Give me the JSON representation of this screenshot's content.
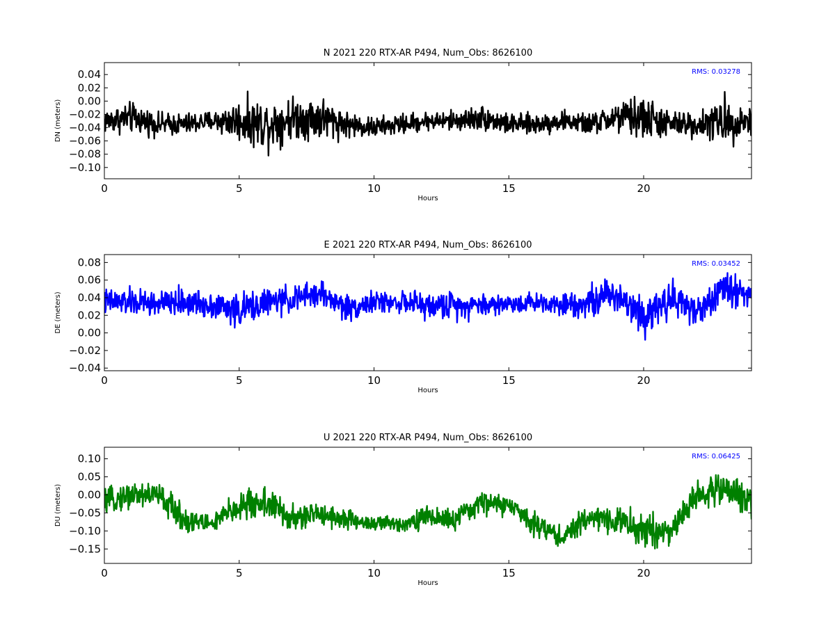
{
  "chart_data": [
    {
      "type": "line",
      "title": "N 2021 220 RTX-AR  P494, Num_Obs: 8626100",
      "xlabel": "Hours",
      "ylabel": "DN (meters)",
      "xlim": [
        0,
        24
      ],
      "ylim": [
        -0.117,
        0.058
      ],
      "xticks": [
        0,
        5,
        10,
        15,
        20
      ],
      "xtick_labels": [
        "0",
        "5",
        "10",
        "15",
        "20"
      ],
      "yticks": [
        0.04,
        0.02,
        0.0,
        -0.02,
        -0.04,
        -0.06,
        -0.08,
        -0.1
      ],
      "ytick_labels": [
        "0.04",
        "0.02",
        "0.00",
        "−0.02",
        "−0.04",
        "−0.06",
        "−0.08",
        "−0.10"
      ],
      "annotation": "RMS:  0.03278",
      "annotation_color": "#0000ff",
      "color": "#000000",
      "series": [
        {
          "x": [
            0,
            1,
            2,
            3,
            4,
            5,
            6,
            7,
            8,
            9,
            10,
            11,
            12,
            13,
            14,
            15,
            16,
            17,
            18,
            19,
            20,
            21,
            22,
            23,
            24
          ],
          "y": [
            -0.03,
            -0.025,
            -0.035,
            -0.035,
            -0.03,
            -0.03,
            -0.035,
            -0.025,
            -0.025,
            -0.035,
            -0.04,
            -0.035,
            -0.03,
            -0.03,
            -0.025,
            -0.035,
            -0.035,
            -0.03,
            -0.035,
            -0.025,
            -0.025,
            -0.035,
            -0.035,
            -0.03,
            -0.03
          ],
          "spread": [
            0.025,
            0.03,
            0.022,
            0.022,
            0.02,
            0.04,
            0.05,
            0.04,
            0.045,
            0.025,
            0.02,
            0.02,
            0.018,
            0.02,
            0.025,
            0.02,
            0.02,
            0.02,
            0.02,
            0.03,
            0.045,
            0.025,
            0.025,
            0.045,
            0.03
          ]
        }
      ]
    },
    {
      "type": "line",
      "title": "E 2021 220 RTX-AR  P494, Num_Obs: 8626100",
      "xlabel": "Hours",
      "ylabel": "DE (meters)",
      "xlim": [
        0,
        24
      ],
      "ylim": [
        -0.043,
        0.089
      ],
      "xticks": [
        0,
        5,
        10,
        15,
        20
      ],
      "xtick_labels": [
        "0",
        "5",
        "10",
        "15",
        "20"
      ],
      "yticks": [
        0.08,
        0.06,
        0.04,
        0.02,
        0.0,
        -0.02,
        -0.04
      ],
      "ytick_labels": [
        "0.08",
        "0.06",
        "0.04",
        "0.02",
        "0.00",
        "−0.02",
        "−0.04"
      ],
      "annotation": "RMS:  0.03452",
      "annotation_color": "#0000ff",
      "color": "#0000ff",
      "series": [
        {
          "x": [
            0,
            1,
            2,
            3,
            4,
            5,
            6,
            7,
            8,
            9,
            10,
            11,
            12,
            13,
            14,
            15,
            16,
            17,
            18,
            19,
            20,
            21,
            22,
            23,
            24
          ],
          "y": [
            0.035,
            0.035,
            0.033,
            0.035,
            0.032,
            0.025,
            0.035,
            0.038,
            0.045,
            0.028,
            0.035,
            0.035,
            0.03,
            0.032,
            0.032,
            0.033,
            0.035,
            0.033,
            0.035,
            0.045,
            0.02,
            0.04,
            0.025,
            0.05,
            0.045
          ],
          "spread": [
            0.02,
            0.02,
            0.02,
            0.02,
            0.02,
            0.025,
            0.02,
            0.02,
            0.02,
            0.02,
            0.015,
            0.015,
            0.02,
            0.02,
            0.018,
            0.015,
            0.015,
            0.015,
            0.025,
            0.025,
            0.03,
            0.03,
            0.02,
            0.03,
            0.02
          ]
        }
      ]
    },
    {
      "type": "line",
      "title": "U 2021 220 RTX-AR  P494, Num_Obs: 8626100",
      "xlabel": "Hours",
      "ylabel": "DU (meters)",
      "xlim": [
        0,
        24
      ],
      "ylim": [
        -0.19,
        0.132
      ],
      "xticks": [
        0,
        5,
        10,
        15,
        20
      ],
      "xtick_labels": [
        "0",
        "5",
        "10",
        "15",
        "20"
      ],
      "yticks": [
        0.1,
        0.05,
        0.0,
        -0.05,
        -0.1,
        -0.15
      ],
      "ytick_labels": [
        "0.10",
        "0.05",
        "0.00",
        "−0.05",
        "−0.10",
        "−0.15"
      ],
      "annotation": "RMS:  0.06425",
      "annotation_color": "#0000ff",
      "color": "#008000",
      "series": [
        {
          "x": [
            0,
            1,
            2,
            3,
            4,
            5,
            6,
            7,
            8,
            9,
            10,
            11,
            12,
            13,
            14,
            15,
            16,
            17,
            18,
            19,
            20,
            21,
            22,
            23,
            24
          ],
          "y": [
            -0.02,
            0.0,
            0.0,
            -0.07,
            -0.08,
            -0.03,
            -0.02,
            -0.07,
            -0.05,
            -0.07,
            -0.08,
            -0.08,
            -0.06,
            -0.07,
            -0.02,
            -0.03,
            -0.08,
            -0.12,
            -0.06,
            -0.07,
            -0.1,
            -0.1,
            0.0,
            0.02,
            -0.02
          ],
          "spread": [
            0.04,
            0.05,
            0.05,
            0.05,
            0.03,
            0.06,
            0.06,
            0.05,
            0.04,
            0.04,
            0.03,
            0.03,
            0.04,
            0.04,
            0.04,
            0.04,
            0.04,
            0.04,
            0.04,
            0.05,
            0.08,
            0.05,
            0.05,
            0.06,
            0.05
          ]
        }
      ]
    }
  ]
}
